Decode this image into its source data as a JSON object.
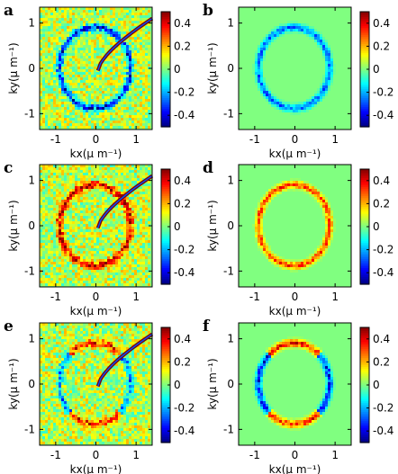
{
  "chart_data": [
    {
      "type": "heatmap",
      "panel_label": "a",
      "xlabel": "kx(μ m⁻¹)",
      "ylabel": "ky(μ m⁻¹)",
      "xticks": [
        "-1",
        "0",
        "1"
      ],
      "yticks": [
        "1",
        "0",
        "-1"
      ],
      "xlim": [
        -1.4,
        1.4
      ],
      "ylim": [
        -1.35,
        1.35
      ],
      "colorbar": {
        "range": [
          -0.5,
          0.5
        ],
        "ticks": [
          "0.4",
          "0.2",
          "0",
          "-0.2",
          "-0.4"
        ]
      },
      "ring": {
        "radius": 0.9,
        "sign": -1,
        "amplitude": 0.45
      },
      "background": "noisy",
      "streak": true
    },
    {
      "type": "heatmap",
      "panel_label": "b",
      "xlabel": "kx(μ m⁻¹)",
      "ylabel": "ky(μ m⁻¹)",
      "xticks": [
        "-1",
        "0",
        "1"
      ],
      "yticks": [
        "1",
        "0",
        "-1"
      ],
      "xlim": [
        -1.4,
        1.4
      ],
      "ylim": [
        -1.35,
        1.35
      ],
      "colorbar": {
        "range": [
          -0.5,
          0.5
        ],
        "ticks": [
          "0.4",
          "0.2",
          "0",
          "-0.2",
          "-0.4"
        ]
      },
      "ring": {
        "radius": 0.9,
        "sign": -1,
        "amplitude": 0.3
      },
      "background": "uniform",
      "streak": false
    },
    {
      "type": "heatmap",
      "panel_label": "c",
      "xlabel": "kx(μ m⁻¹)",
      "ylabel": "ky(μ m⁻¹)",
      "xticks": [
        "-1",
        "0",
        "1"
      ],
      "yticks": [
        "1",
        "0",
        "-1"
      ],
      "xlim": [
        -1.4,
        1.4
      ],
      "ylim": [
        -1.35,
        1.35
      ],
      "colorbar": {
        "range": [
          -0.5,
          0.5
        ],
        "ticks": [
          "0.4",
          "0.2",
          "0",
          "-0.2",
          "-0.4"
        ]
      },
      "ring": {
        "radius": 0.9,
        "sign": 1,
        "amplitude": 0.4
      },
      "background": "noisy",
      "streak": true
    },
    {
      "type": "heatmap",
      "panel_label": "d",
      "xlabel": "kx(μ m⁻¹)",
      "ylabel": "ky(μ m⁻¹)",
      "xticks": [
        "-1",
        "0",
        "1"
      ],
      "yticks": [
        "1",
        "0",
        "-1"
      ],
      "xlim": [
        -1.4,
        1.4
      ],
      "ylim": [
        -1.35,
        1.35
      ],
      "colorbar": {
        "range": [
          -0.5,
          0.5
        ],
        "ticks": [
          "0.4",
          "0.2",
          "0",
          "-0.2",
          "-0.4"
        ]
      },
      "ring": {
        "radius": 0.9,
        "sign": 1,
        "amplitude": 0.35
      },
      "background": "uniform",
      "streak": false
    },
    {
      "type": "heatmap",
      "panel_label": "e",
      "xlabel": "kx(μ m⁻¹)",
      "ylabel": "ky(μ m⁻¹)",
      "xticks": [
        "-1",
        "0",
        "1"
      ],
      "yticks": [
        "1",
        "0",
        "-1"
      ],
      "xlim": [
        -1.4,
        1.4
      ],
      "ylim": [
        -1.35,
        1.35
      ],
      "colorbar": {
        "range": [
          -0.5,
          0.5
        ],
        "ticks": [
          "0.4",
          "0.2",
          "0",
          "-0.2",
          "-0.4"
        ]
      },
      "ring": {
        "radius": 0.9,
        "sign": 0,
        "amplitude": 0.3
      },
      "background": "noisy",
      "streak": true
    },
    {
      "type": "heatmap",
      "panel_label": "f",
      "xlabel": "kx(μ m⁻¹)",
      "ylabel": "ky(μ m⁻¹)",
      "xticks": [
        "-1",
        "0",
        "1"
      ],
      "yticks": [
        "1",
        "0",
        "-1"
      ],
      "xlim": [
        -1.4,
        1.4
      ],
      "ylim": [
        -1.35,
        1.35
      ],
      "colorbar": {
        "range": [
          -0.5,
          0.5
        ],
        "ticks": [
          "0.4",
          "0.2",
          "0",
          "-0.2",
          "-0.4"
        ]
      },
      "ring": {
        "radius": 0.9,
        "sign": 0,
        "amplitude": 0.4
      },
      "background": "uniform",
      "streak": false
    }
  ],
  "colors": {
    "colormap": "jet",
    "zero": "#7fff7f",
    "axis": "#000000"
  }
}
